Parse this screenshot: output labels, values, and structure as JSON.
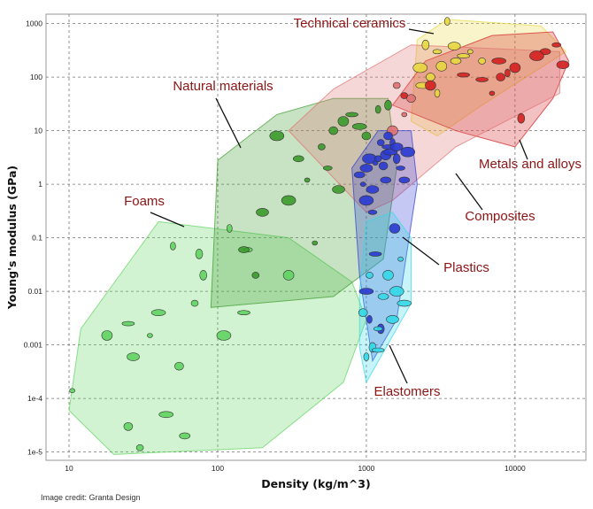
{
  "credit": "Image credit: Granta Design",
  "chart_data": {
    "type": "scatter",
    "title": "",
    "xlabel": "Density (kg/m^3)",
    "ylabel": "Young's modulus (GPa)",
    "x_scale": "log",
    "y_scale": "log",
    "xlim": [
      7,
      30000
    ],
    "ylim": [
      7e-06,
      1500
    ],
    "grid": true,
    "x_ticks": [
      {
        "value": 10,
        "label": "10"
      },
      {
        "value": 100,
        "label": "100"
      },
      {
        "value": 1000,
        "label": "1000"
      },
      {
        "value": 10000,
        "label": "10000"
      }
    ],
    "y_ticks": [
      {
        "value": 1e-05,
        "label": "1e-5"
      },
      {
        "value": 0.0001,
        "label": "1e-4"
      },
      {
        "value": 0.001,
        "label": "0.001"
      },
      {
        "value": 0.01,
        "label": "0.01"
      },
      {
        "value": 0.1,
        "label": "0.1"
      },
      {
        "value": 1,
        "label": "1"
      },
      {
        "value": 10,
        "label": "10"
      },
      {
        "value": 100,
        "label": "100"
      },
      {
        "value": 1000,
        "label": "1000"
      }
    ],
    "families": [
      {
        "name": "Foams",
        "color": "#5fd35f",
        "hull": [
          [
            10,
            6e-05
          ],
          [
            20,
            9e-06
          ],
          [
            200,
            1.2e-05
          ],
          [
            700,
            0.0002
          ],
          [
            1000,
            0.003
          ],
          [
            800,
            0.015
          ],
          [
            300,
            0.1
          ],
          [
            40,
            0.2
          ],
          [
            12,
            0.002
          ]
        ],
        "points": [
          [
            10.5,
            0.00014
          ],
          [
            30,
            1.2e-05
          ],
          [
            25,
            3e-05
          ],
          [
            18,
            0.0015
          ],
          [
            25,
            0.0025
          ],
          [
            40,
            0.004
          ],
          [
            50,
            0.07
          ],
          [
            80,
            0.02
          ],
          [
            160,
            0.06
          ],
          [
            60,
            2e-05
          ],
          [
            27,
            0.0006
          ],
          [
            110,
            0.0015
          ],
          [
            35,
            0.0015
          ],
          [
            70,
            0.006
          ],
          [
            55,
            0.0004
          ],
          [
            300,
            0.02
          ],
          [
            150,
            0.004
          ],
          [
            45,
            5e-05
          ],
          [
            120,
            0.15
          ],
          [
            75,
            0.05
          ]
        ]
      },
      {
        "name": "Natural materials",
        "color": "#3a9a2a",
        "hull": [
          [
            90,
            0.005
          ],
          [
            100,
            2.8
          ],
          [
            250,
            20
          ],
          [
            600,
            40
          ],
          [
            1400,
            40
          ],
          [
            1600,
            2
          ],
          [
            1300,
            0.04
          ],
          [
            600,
            0.008
          ]
        ],
        "points": [
          [
            150,
            0.06
          ],
          [
            200,
            0.3
          ],
          [
            300,
            0.5
          ],
          [
            400,
            1.2
          ],
          [
            500,
            5
          ],
          [
            600,
            10
          ],
          [
            700,
            15
          ],
          [
            800,
            20
          ],
          [
            900,
            12
          ],
          [
            1200,
            25
          ],
          [
            1400,
            30
          ],
          [
            550,
            2
          ],
          [
            350,
            3
          ],
          [
            650,
            0.8
          ],
          [
            250,
            8
          ],
          [
            450,
            0.08
          ],
          [
            180,
            0.02
          ],
          [
            1000,
            8
          ]
        ]
      },
      {
        "name": "Technical ceramics",
        "color": "#e8d840",
        "hull": [
          [
            2000,
            15
          ],
          [
            2200,
            500
          ],
          [
            3500,
            1200
          ],
          [
            15000,
            900
          ],
          [
            22000,
            300
          ],
          [
            6000,
            30
          ],
          [
            3000,
            8
          ]
        ],
        "points": [
          [
            3500,
            1100
          ],
          [
            2500,
            400
          ],
          [
            3000,
            300
          ],
          [
            4000,
            200
          ],
          [
            3900,
            380
          ],
          [
            2300,
            150
          ],
          [
            5000,
            300
          ],
          [
            6000,
            200
          ],
          [
            2700,
            100
          ],
          [
            3200,
            160
          ],
          [
            4500,
            250
          ],
          [
            2400,
            70
          ],
          [
            3000,
            50
          ]
        ]
      },
      {
        "name": "Metals and alloys",
        "color": "#d42020",
        "hull": [
          [
            1500,
            30
          ],
          [
            2500,
            200
          ],
          [
            7000,
            600
          ],
          [
            18000,
            700
          ],
          [
            23000,
            200
          ],
          [
            18000,
            40
          ],
          [
            10000,
            5
          ],
          [
            4000,
            10
          ]
        ],
        "points": [
          [
            2700,
            70
          ],
          [
            4500,
            110
          ],
          [
            7800,
            200
          ],
          [
            8900,
            120
          ],
          [
            11000,
            17
          ],
          [
            19000,
            400
          ],
          [
            16000,
            300
          ],
          [
            21000,
            170
          ],
          [
            14000,
            250
          ],
          [
            7000,
            50
          ],
          [
            1800,
            45
          ],
          [
            8000,
            100
          ],
          [
            10000,
            150
          ],
          [
            6000,
            90
          ]
        ]
      },
      {
        "name": "Composites",
        "color": "#e07070",
        "hull": [
          [
            300,
            10
          ],
          [
            600,
            60
          ],
          [
            2000,
            400
          ],
          [
            20000,
            300
          ],
          [
            20000,
            50
          ],
          [
            4000,
            5
          ],
          [
            1500,
            0.5
          ],
          [
            1000,
            0.3
          ]
        ],
        "points": [
          [
            1800,
            20
          ],
          [
            1600,
            70
          ],
          [
            2000,
            40
          ],
          [
            1500,
            10
          ]
        ]
      },
      {
        "name": "Plastics",
        "color": "#2a3ad0",
        "hull": [
          [
            900,
            0.02
          ],
          [
            800,
            2
          ],
          [
            1200,
            10
          ],
          [
            2000,
            10
          ],
          [
            2200,
            1
          ],
          [
            1600,
            0.003
          ],
          [
            1100,
            0.0005
          ]
        ],
        "points": [
          [
            900,
            1.5
          ],
          [
            1000,
            2
          ],
          [
            1050,
            3
          ],
          [
            1150,
            2.5
          ],
          [
            1200,
            3
          ],
          [
            1300,
            2.2
          ],
          [
            1350,
            3.5
          ],
          [
            1400,
            5
          ],
          [
            1450,
            4
          ],
          [
            1500,
            6
          ],
          [
            1600,
            3
          ],
          [
            1700,
            2
          ],
          [
            1800,
            1.2
          ],
          [
            1100,
            0.8
          ],
          [
            1000,
            0.5
          ],
          [
            950,
            1
          ],
          [
            1250,
            6
          ],
          [
            1400,
            8
          ],
          [
            1550,
            0.15
          ],
          [
            1150,
            0.05
          ],
          [
            1000,
            0.01
          ],
          [
            1050,
            0.003
          ],
          [
            1250,
            0.002
          ],
          [
            1100,
            0.3
          ],
          [
            1350,
            1.2
          ],
          [
            1600,
            5
          ],
          [
            1900,
            4
          ]
        ]
      },
      {
        "name": "Elastomers",
        "color": "#33d8e8",
        "hull": [
          [
            900,
            0.01
          ],
          [
            900,
            0.0009
          ],
          [
            1000,
            0.0002
          ],
          [
            1250,
            0.0006
          ],
          [
            2000,
            0.006
          ],
          [
            2000,
            0.1
          ],
          [
            1500,
            0.3
          ],
          [
            1000,
            0.2
          ]
        ],
        "points": [
          [
            1000,
            0.0006
          ],
          [
            1100,
            0.0009
          ],
          [
            1200,
            0.002
          ],
          [
            1300,
            0.008
          ],
          [
            1500,
            0.003
          ],
          [
            1600,
            0.01
          ],
          [
            1700,
            0.04
          ],
          [
            1050,
            0.02
          ],
          [
            950,
            0.004
          ],
          [
            1400,
            0.02
          ],
          [
            1200,
            0.0008
          ],
          [
            1800,
            0.006
          ]
        ]
      }
    ],
    "labels": [
      {
        "name": "Technical ceramics",
        "tx": 395,
        "ty": 31,
        "anchor": "middle",
        "lx1": 462,
        "ly1": 33,
        "lx2": 490,
        "ly2": 38
      },
      {
        "name": "Natural materials",
        "tx": 252,
        "ty": 102,
        "anchor": "middle",
        "lx1": 244,
        "ly1": 111,
        "lx2": 272,
        "ly2": 167
      },
      {
        "name": "Foams",
        "tx": 163,
        "ty": 232,
        "anchor": "middle",
        "lx1": 170,
        "ly1": 240,
        "lx2": 208,
        "ly2": 256
      },
      {
        "name": "Metals and alloys",
        "tx": 599,
        "ty": 190,
        "anchor": "middle",
        "lx1": 596,
        "ly1": 180,
        "lx2": 587,
        "ly2": 158
      },
      {
        "name": "Composites",
        "tx": 565,
        "ty": 249,
        "anchor": "middle",
        "lx1": 545,
        "ly1": 237,
        "lx2": 515,
        "ly2": 196
      },
      {
        "name": "Plastics",
        "tx": 527,
        "ty": 307,
        "anchor": "middle",
        "lx1": 496,
        "ly1": 299,
        "lx2": 455,
        "ly2": 268
      },
      {
        "name": "Elastomers",
        "tx": 460,
        "ty": 447,
        "anchor": "middle",
        "lx1": 460,
        "ly1": 433,
        "lx2": 440,
        "ly2": 390
      }
    ]
  }
}
